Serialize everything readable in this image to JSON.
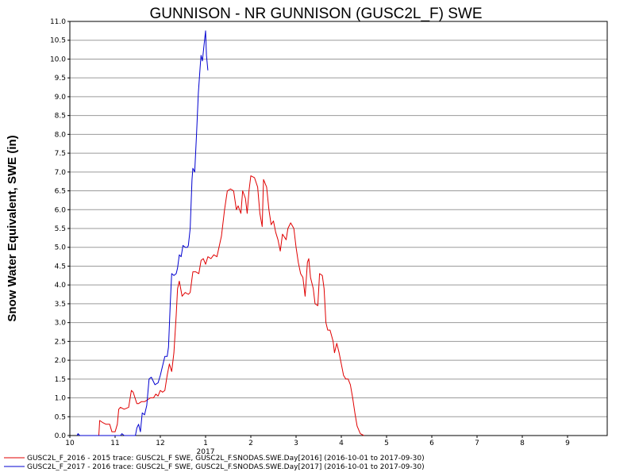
{
  "chart_data": {
    "type": "line",
    "title": "GUNNISON - NR GUNNISON (GUSC2L_F) SWE",
    "ylabel": "Snow Water Equivalent, SWE (in)",
    "xlabel": "",
    "ylim": [
      0,
      11
    ],
    "yticks": [
      "0.0",
      "0.5",
      "1.0",
      "1.5",
      "2.0",
      "2.5",
      "3.0",
      "3.5",
      "4.0",
      "4.5",
      "5.0",
      "5.5",
      "6.0",
      "6.5",
      "7.0",
      "7.5",
      "8.0",
      "8.5",
      "9.0",
      "9.5",
      "10.0",
      "10.5",
      "11.0"
    ],
    "xticks": [
      {
        "label": "10",
        "month": 0
      },
      {
        "label": "11",
        "month": 1
      },
      {
        "label": "12",
        "month": 2
      },
      {
        "label": "1",
        "month": 3
      },
      {
        "label": "2",
        "month": 4
      },
      {
        "label": "3",
        "month": 5
      },
      {
        "label": "4",
        "month": 6
      },
      {
        "label": "5",
        "month": 7
      },
      {
        "label": "6",
        "month": 8
      },
      {
        "label": "7",
        "month": 9
      },
      {
        "label": "8",
        "month": 10
      },
      {
        "label": "9",
        "month": 11
      }
    ],
    "year_label": {
      "text": "2017",
      "month": 3
    },
    "grid": true,
    "series": [
      {
        "name": "GUSC2L_F_2016 - 2015 trace: GUSC2L_F SWE, GUSC2L_F.SNODAS.SWE.Day[2016] (2016-10-01 to 2017-09-30)",
        "color": "#e00000",
        "points": [
          [
            0.64,
            0.0
          ],
          [
            0.66,
            0.4
          ],
          [
            0.72,
            0.35
          ],
          [
            0.8,
            0.3
          ],
          [
            0.88,
            0.3
          ],
          [
            0.93,
            0.1
          ],
          [
            1.0,
            0.1
          ],
          [
            1.05,
            0.3
          ],
          [
            1.08,
            0.7
          ],
          [
            1.12,
            0.75
          ],
          [
            1.2,
            0.7
          ],
          [
            1.3,
            0.75
          ],
          [
            1.36,
            1.2
          ],
          [
            1.4,
            1.15
          ],
          [
            1.48,
            0.85
          ],
          [
            1.52,
            0.85
          ],
          [
            1.58,
            0.9
          ],
          [
            1.65,
            0.9
          ],
          [
            1.72,
            0.95
          ],
          [
            1.78,
            1.0
          ],
          [
            1.85,
            1.0
          ],
          [
            1.9,
            1.1
          ],
          [
            1.95,
            1.05
          ],
          [
            2.0,
            1.2
          ],
          [
            2.05,
            1.15
          ],
          [
            2.1,
            1.2
          ],
          [
            2.15,
            1.6
          ],
          [
            2.2,
            1.9
          ],
          [
            2.25,
            1.7
          ],
          [
            2.3,
            2.2
          ],
          [
            2.35,
            3.2
          ],
          [
            2.38,
            3.9
          ],
          [
            2.42,
            4.1
          ],
          [
            2.48,
            3.7
          ],
          [
            2.55,
            3.8
          ],
          [
            2.62,
            3.75
          ],
          [
            2.66,
            3.8
          ],
          [
            2.72,
            4.35
          ],
          [
            2.78,
            4.35
          ],
          [
            2.85,
            4.3
          ],
          [
            2.9,
            4.65
          ],
          [
            2.95,
            4.7
          ],
          [
            3.0,
            4.55
          ],
          [
            3.05,
            4.75
          ],
          [
            3.12,
            4.7
          ],
          [
            3.18,
            4.8
          ],
          [
            3.25,
            4.75
          ],
          [
            3.35,
            5.3
          ],
          [
            3.42,
            6.0
          ],
          [
            3.48,
            6.5
          ],
          [
            3.55,
            6.55
          ],
          [
            3.62,
            6.5
          ],
          [
            3.68,
            6.0
          ],
          [
            3.72,
            6.1
          ],
          [
            3.78,
            5.9
          ],
          [
            3.82,
            6.5
          ],
          [
            3.88,
            6.3
          ],
          [
            3.92,
            5.9
          ],
          [
            3.96,
            6.5
          ],
          [
            4.0,
            6.9
          ],
          [
            4.08,
            6.85
          ],
          [
            4.15,
            6.6
          ],
          [
            4.2,
            5.9
          ],
          [
            4.25,
            5.55
          ],
          [
            4.28,
            6.8
          ],
          [
            4.35,
            6.6
          ],
          [
            4.4,
            6.0
          ],
          [
            4.45,
            5.6
          ],
          [
            4.5,
            5.7
          ],
          [
            4.55,
            5.4
          ],
          [
            4.6,
            5.2
          ],
          [
            4.65,
            4.9
          ],
          [
            4.7,
            5.35
          ],
          [
            4.78,
            5.2
          ],
          [
            4.82,
            5.5
          ],
          [
            4.88,
            5.65
          ],
          [
            4.95,
            5.5
          ],
          [
            5.0,
            5.0
          ],
          [
            5.05,
            4.6
          ],
          [
            5.1,
            4.3
          ],
          [
            5.15,
            4.2
          ],
          [
            5.2,
            3.7
          ],
          [
            5.25,
            4.6
          ],
          [
            5.28,
            4.7
          ],
          [
            5.32,
            4.2
          ],
          [
            5.38,
            3.9
          ],
          [
            5.42,
            3.5
          ],
          [
            5.48,
            3.45
          ],
          [
            5.52,
            4.3
          ],
          [
            5.58,
            4.25
          ],
          [
            5.62,
            3.9
          ],
          [
            5.66,
            3.0
          ],
          [
            5.7,
            2.8
          ],
          [
            5.75,
            2.8
          ],
          [
            5.82,
            2.5
          ],
          [
            5.85,
            2.2
          ],
          [
            5.9,
            2.45
          ],
          [
            5.95,
            2.2
          ],
          [
            6.0,
            1.9
          ],
          [
            6.05,
            1.6
          ],
          [
            6.1,
            1.5
          ],
          [
            6.15,
            1.5
          ],
          [
            6.2,
            1.35
          ],
          [
            6.25,
            1.0
          ],
          [
            6.3,
            0.6
          ],
          [
            6.35,
            0.25
          ],
          [
            6.42,
            0.05
          ],
          [
            6.5,
            0.0
          ]
        ]
      },
      {
        "name": "GUSC2L_F_2017 - 2016 trace: GUSC2L_F SWE, GUSC2L_F.SNODAS.SWE.Day[2017] (2016-10-01 to 2017-09-30)",
        "color": "#0000d0",
        "points": [
          [
            0.16,
            0.0
          ],
          [
            0.18,
            0.05
          ],
          [
            0.22,
            0.0
          ],
          [
            0.6,
            0.0
          ],
          [
            1.12,
            0.0
          ],
          [
            1.15,
            0.05
          ],
          [
            1.2,
            0.0
          ],
          [
            1.45,
            0.0
          ],
          [
            1.48,
            0.2
          ],
          [
            1.52,
            0.3
          ],
          [
            1.56,
            0.1
          ],
          [
            1.6,
            0.6
          ],
          [
            1.65,
            0.55
          ],
          [
            1.7,
            0.8
          ],
          [
            1.75,
            1.5
          ],
          [
            1.8,
            1.55
          ],
          [
            1.88,
            1.35
          ],
          [
            1.95,
            1.4
          ],
          [
            2.0,
            1.6
          ],
          [
            2.05,
            1.85
          ],
          [
            2.1,
            2.1
          ],
          [
            2.15,
            2.1
          ],
          [
            2.18,
            2.35
          ],
          [
            2.22,
            3.5
          ],
          [
            2.25,
            4.3
          ],
          [
            2.3,
            4.25
          ],
          [
            2.35,
            4.3
          ],
          [
            2.38,
            4.45
          ],
          [
            2.42,
            4.8
          ],
          [
            2.46,
            4.75
          ],
          [
            2.5,
            5.05
          ],
          [
            2.55,
            5.0
          ],
          [
            2.6,
            5.0
          ],
          [
            2.62,
            5.05
          ],
          [
            2.66,
            5.5
          ],
          [
            2.7,
            6.8
          ],
          [
            2.72,
            7.1
          ],
          [
            2.76,
            7.0
          ],
          [
            2.8,
            8.0
          ],
          [
            2.84,
            9.1
          ],
          [
            2.88,
            9.8
          ],
          [
            2.9,
            10.1
          ],
          [
            2.93,
            9.95
          ],
          [
            2.96,
            10.3
          ],
          [
            3.0,
            10.75
          ],
          [
            3.02,
            10.1
          ],
          [
            3.05,
            9.7
          ]
        ]
      }
    ]
  }
}
